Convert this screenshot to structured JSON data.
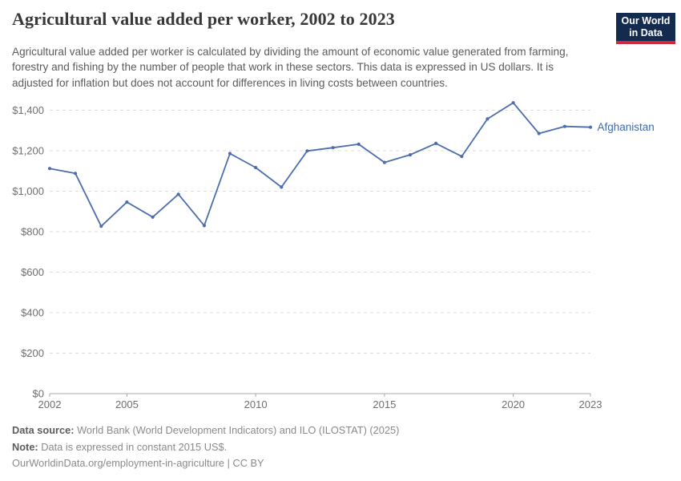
{
  "header": {
    "title": "Agricultural value added per worker, 2002 to 2023",
    "subtitle": "Agricultural value added per worker is calculated by dividing the amount of economic value generated from farming, forestry and fishing by the number of people that work in these sectors. This data is expressed in US dollars. It is adjusted for inflation but does not account for differences in living costs between countries.",
    "logo": {
      "line1": "Our World",
      "line2": "in Data",
      "bg_color": "#122b4e",
      "stripe_color": "#d0293d"
    }
  },
  "chart_data": {
    "type": "line",
    "title": "Agricultural value added per worker, 2002 to 2023",
    "xlabel": "",
    "ylabel": "",
    "x": [
      2002,
      2003,
      2004,
      2005,
      2006,
      2007,
      2008,
      2009,
      2010,
      2011,
      2012,
      2013,
      2014,
      2015,
      2016,
      2017,
      2018,
      2019,
      2020,
      2021,
      2022,
      2023
    ],
    "series": [
      {
        "name": "Afghanistan",
        "color": "#4d6dad",
        "label_color": "#3d6bb3",
        "values": [
          1112,
          1088,
          827,
          946,
          872,
          985,
          830,
          1186,
          1117,
          1020,
          1199,
          1215,
          1232,
          1142,
          1180,
          1236,
          1172,
          1357,
          1437,
          1285,
          1320,
          1316
        ]
      }
    ],
    "ylim": [
      0,
      1400
    ],
    "yticks": [
      0,
      200,
      400,
      600,
      800,
      1000,
      1200,
      1400
    ],
    "ytick_prefix": "$",
    "xticks": [
      2002,
      2005,
      2010,
      2015,
      2020,
      2023
    ],
    "grid": "horizontal-dashed",
    "legend_position": "end-of-line-label",
    "tick_text_color": "#6e6e6e",
    "grid_color": "#dcdcdc",
    "axis_color": "#a8a8a8"
  },
  "footer": {
    "source_label": "Data source:",
    "source_text": " World Bank (World Development Indicators) and ILO (ILOSTAT) (2025)",
    "note_label": "Note:",
    "note_text": " Data is expressed in constant 2015 US$.",
    "license_text": "OurWorldinData.org/employment-in-agriculture | CC BY"
  }
}
